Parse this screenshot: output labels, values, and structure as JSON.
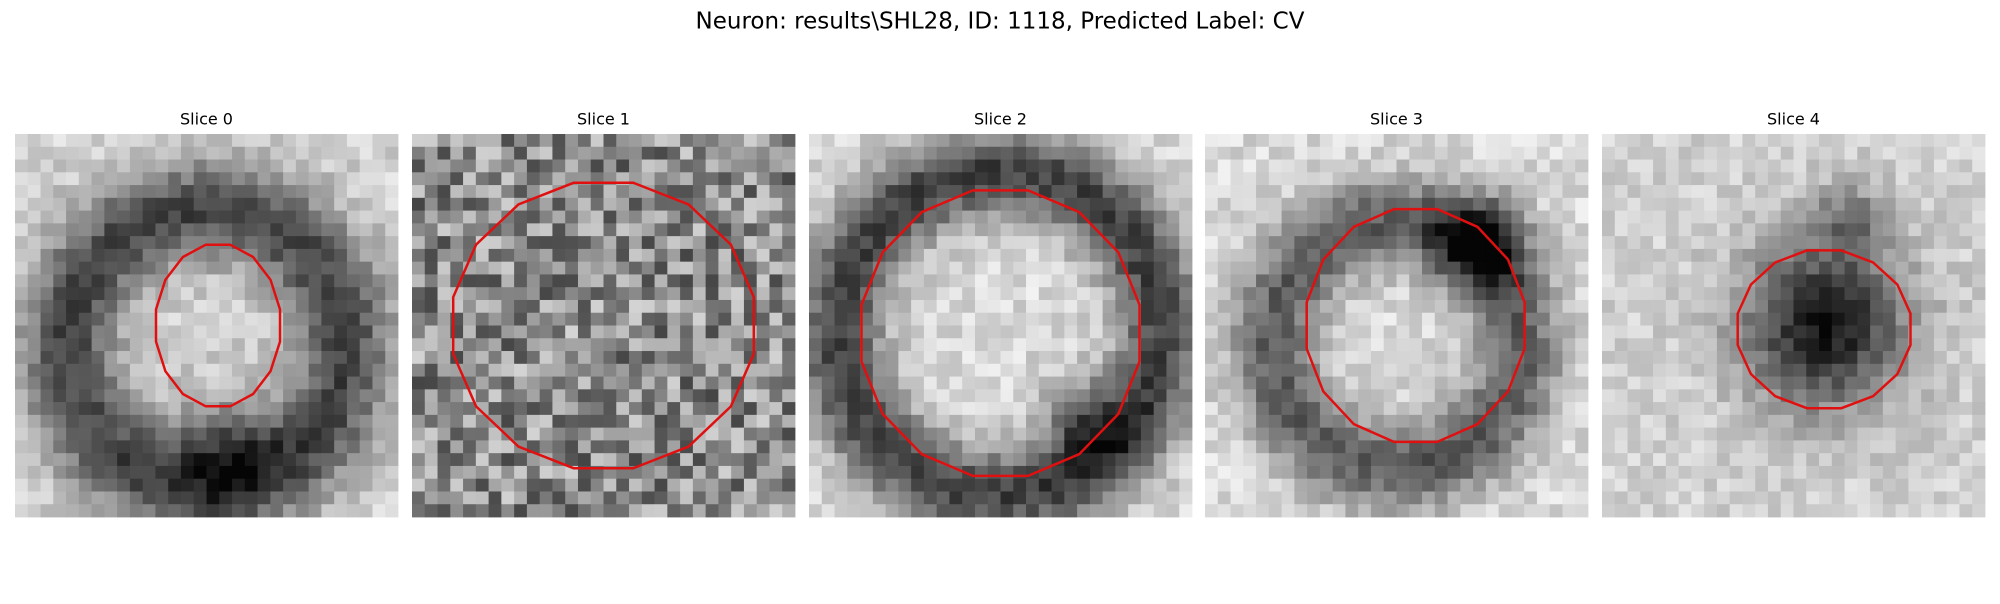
{
  "title": "Neuron: results\\SHL28, ID: 1118, Predicted Label: CV",
  "panels": [
    {
      "title": "Slice 0"
    },
    {
      "title": "Slice 1"
    },
    {
      "title": "Slice 2"
    },
    {
      "title": "Slice 3"
    },
    {
      "title": "Slice 4"
    }
  ]
}
